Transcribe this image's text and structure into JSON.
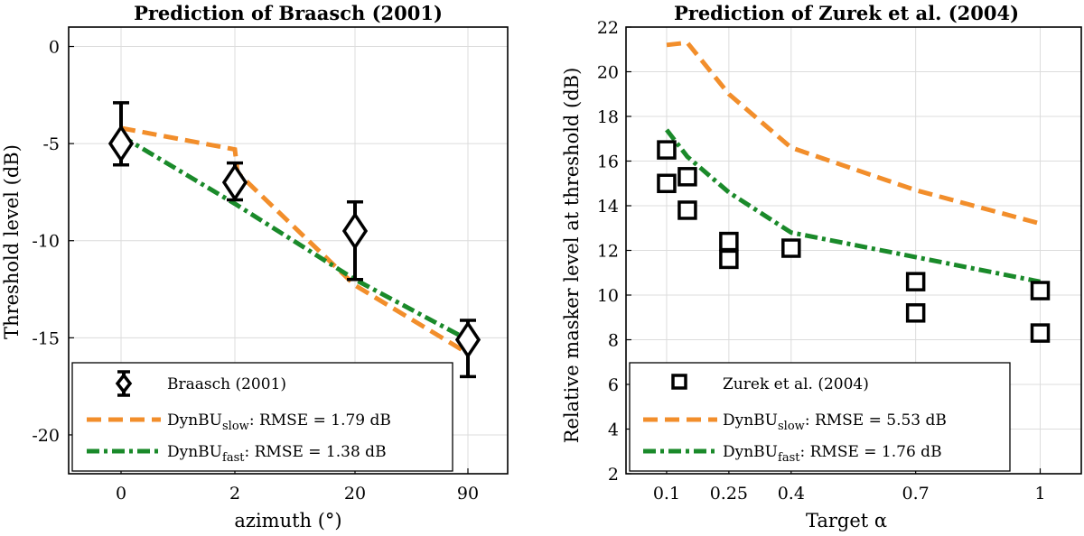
{
  "colors": {
    "slow": "#f28e2b",
    "fast": "#1a8a2a",
    "data": "#000000",
    "grid": "#dcdcdc"
  },
  "chart_data": [
    {
      "type": "line",
      "title": "Prediction of Braasch (2001)",
      "xlabel": "azimuth (°)",
      "ylabel": "Threshold level (dB)",
      "categories": [
        "0",
        "2",
        "20",
        "90"
      ],
      "ylim": [
        -22,
        1
      ],
      "yticks": [
        0,
        -5,
        -10,
        -15,
        -20
      ],
      "ytick_labels": [
        "0",
        "-5",
        "-10",
        "-15",
        "-20"
      ],
      "grid": true,
      "legend_position": "bottom",
      "measured": {
        "name": "Braasch (2001)",
        "marker": "diamond",
        "points": [
          {
            "x": 0,
            "y": -5.0,
            "lo": -6.1,
            "hi": -2.9
          },
          {
            "x": 2,
            "y": -7.0,
            "lo": -7.9,
            "hi": -6.0
          },
          {
            "x": 20,
            "y": -9.5,
            "lo": -12.0,
            "hi": -8.0
          },
          {
            "x": 90,
            "y": -15.1,
            "lo": -17.0,
            "hi": -14.1
          }
        ]
      },
      "series": [
        {
          "key": "slow",
          "name": "DynBU",
          "sub": "slow",
          "rmse_text": ": RMSE = 1.79 dB",
          "style": "dashed",
          "x": [
            0,
            2,
            2.4,
            20,
            90
          ],
          "y": [
            -4.2,
            -5.3,
            -6.5,
            -12.3,
            -15.8
          ]
        },
        {
          "key": "fast",
          "name": "DynBU",
          "sub": "fast",
          "rmse_text": ": RMSE = 1.38 dB",
          "style": "dashdot",
          "x": [
            0,
            2,
            20,
            90
          ],
          "y": [
            -4.6,
            -8.1,
            -12.0,
            -15.1
          ]
        }
      ]
    },
    {
      "type": "line",
      "title": "Prediction of Zurek et al. (2004)",
      "xlabel": "Target α",
      "ylabel": "Relative masker level at threshold (dB)",
      "xticks": [
        0.1,
        0.25,
        0.4,
        0.7,
        1
      ],
      "xtick_labels": [
        "0.1",
        "0.25",
        "0.4",
        "0.7",
        "1"
      ],
      "xlim": [
        0,
        1.1
      ],
      "ylim": [
        2,
        22
      ],
      "yticks": [
        2,
        4,
        6,
        8,
        10,
        12,
        14,
        16,
        18,
        20,
        22
      ],
      "ytick_labels": [
        "2",
        "4",
        "6",
        "8",
        "10",
        "12",
        "14",
        "16",
        "18",
        "20",
        "22"
      ],
      "grid": true,
      "legend_position": "bottom",
      "measured": {
        "name": "Zurek et al. (2004)",
        "marker": "square",
        "points": [
          {
            "x": 0.1,
            "y": 16.5
          },
          {
            "x": 0.1,
            "y": 15.0
          },
          {
            "x": 0.15,
            "y": 15.3
          },
          {
            "x": 0.15,
            "y": 13.8
          },
          {
            "x": 0.25,
            "y": 12.4
          },
          {
            "x": 0.25,
            "y": 11.6
          },
          {
            "x": 0.4,
            "y": 12.1
          },
          {
            "x": 0.7,
            "y": 10.6
          },
          {
            "x": 0.7,
            "y": 9.2
          },
          {
            "x": 1.0,
            "y": 10.2
          },
          {
            "x": 1.0,
            "y": 8.3
          }
        ]
      },
      "series": [
        {
          "key": "slow",
          "name": "DynBU",
          "sub": "slow",
          "rmse_text": ": RMSE = 5.53 dB",
          "style": "dashed",
          "x": [
            0.1,
            0.15,
            0.25,
            0.4,
            0.7,
            1.0
          ],
          "y": [
            21.2,
            21.3,
            19.0,
            16.6,
            14.7,
            13.2
          ]
        },
        {
          "key": "fast",
          "name": "DynBU",
          "sub": "fast",
          "rmse_text": ": RMSE = 1.76 dB",
          "style": "dashdot",
          "x": [
            0.1,
            0.15,
            0.25,
            0.4,
            0.7,
            1.0
          ],
          "y": [
            17.4,
            16.2,
            14.6,
            12.8,
            11.7,
            10.6
          ]
        }
      ]
    }
  ]
}
